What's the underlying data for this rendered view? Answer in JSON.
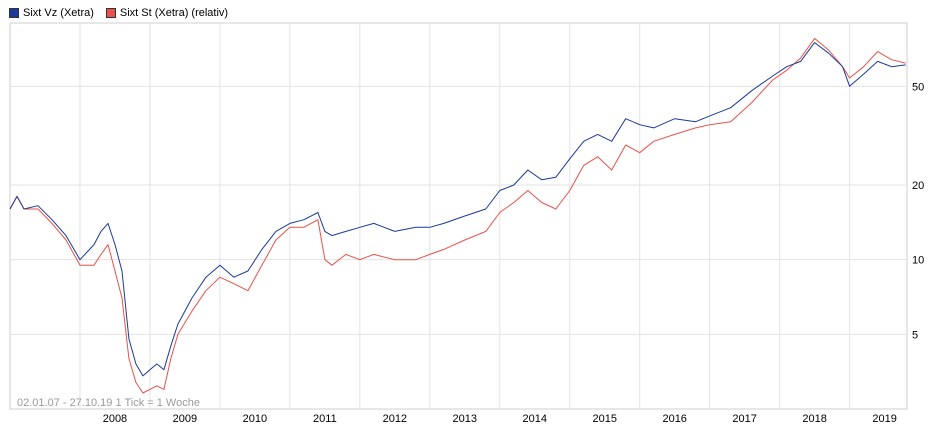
{
  "legend": {
    "series_1_label": "Sixt Vz (Xetra)",
    "series_2_label": "Sixt St (Xetra) (relativ)"
  },
  "footnote": "02.01.07 - 27.10.19   1 Tick = 1 Woche",
  "chart_data": {
    "type": "line",
    "title": "",
    "xlabel": "",
    "ylabel": "",
    "y_scale": "log",
    "x_range": [
      "2007-01-02",
      "2019-10-27"
    ],
    "y_range": [
      2.5,
      90
    ],
    "x_ticks": [
      "2008",
      "2009",
      "2010",
      "2011",
      "2012",
      "2013",
      "2014",
      "2015",
      "2016",
      "2017",
      "2018",
      "2019"
    ],
    "y_ticks": [
      5,
      10,
      20,
      50
    ],
    "y_axis_position": "right",
    "grid": true,
    "legend_position": "top-left",
    "series": [
      {
        "name": "Sixt Vz (Xetra)",
        "color": "#1a3a9c",
        "x": [
          2007.0,
          2007.1,
          2007.2,
          2007.4,
          2007.6,
          2007.8,
          2008.0,
          2008.2,
          2008.3,
          2008.4,
          2008.5,
          2008.6,
          2008.7,
          2008.8,
          2008.9,
          2009.0,
          2009.1,
          2009.2,
          2009.3,
          2009.4,
          2009.6,
          2009.8,
          2010.0,
          2010.2,
          2010.4,
          2010.6,
          2010.8,
          2011.0,
          2011.2,
          2011.4,
          2011.5,
          2011.6,
          2011.8,
          2012.0,
          2012.2,
          2012.5,
          2012.8,
          2013.0,
          2013.2,
          2013.5,
          2013.8,
          2014.0,
          2014.2,
          2014.4,
          2014.6,
          2014.8,
          2015.0,
          2015.2,
          2015.4,
          2015.6,
          2015.8,
          2016.0,
          2016.2,
          2016.5,
          2016.8,
          2017.0,
          2017.3,
          2017.6,
          2017.9,
          2018.1,
          2018.3,
          2018.5,
          2018.7,
          2018.9,
          2019.0,
          2019.2,
          2019.4,
          2019.6,
          2019.8
        ],
        "y": [
          16.0,
          18.0,
          16.0,
          16.5,
          14.5,
          12.5,
          10.0,
          11.5,
          13.0,
          14.0,
          11.5,
          9.0,
          4.8,
          3.8,
          3.4,
          3.6,
          3.8,
          3.6,
          4.5,
          5.5,
          7.0,
          8.5,
          9.5,
          8.5,
          9.0,
          11.0,
          13.0,
          14.0,
          14.5,
          15.5,
          13.0,
          12.5,
          13.0,
          13.5,
          14.0,
          13.0,
          13.5,
          13.5,
          14.0,
          15.0,
          16.0,
          19.0,
          20.0,
          23.0,
          21.0,
          21.5,
          25.5,
          30.0,
          32.0,
          30.0,
          37.0,
          35.0,
          34.0,
          37.0,
          36.0,
          38.0,
          41.0,
          48.0,
          55.0,
          60.0,
          63.0,
          75.0,
          68.0,
          60.0,
          50.0,
          56.0,
          63.0,
          60.0,
          61.0
        ]
      },
      {
        "name": "Sixt St (Xetra) (relativ)",
        "color": "#e8524a",
        "x": [
          2007.0,
          2007.1,
          2007.2,
          2007.4,
          2007.6,
          2007.8,
          2008.0,
          2008.2,
          2008.3,
          2008.4,
          2008.5,
          2008.6,
          2008.7,
          2008.8,
          2008.9,
          2009.0,
          2009.1,
          2009.2,
          2009.3,
          2009.4,
          2009.6,
          2009.8,
          2010.0,
          2010.2,
          2010.4,
          2010.6,
          2010.8,
          2011.0,
          2011.2,
          2011.4,
          2011.5,
          2011.6,
          2011.8,
          2012.0,
          2012.2,
          2012.5,
          2012.8,
          2013.0,
          2013.2,
          2013.5,
          2013.8,
          2014.0,
          2014.2,
          2014.4,
          2014.6,
          2014.8,
          2015.0,
          2015.2,
          2015.4,
          2015.6,
          2015.8,
          2016.0,
          2016.2,
          2016.5,
          2016.8,
          2017.0,
          2017.3,
          2017.6,
          2017.9,
          2018.1,
          2018.3,
          2018.5,
          2018.7,
          2018.9,
          2019.0,
          2019.2,
          2019.4,
          2019.6,
          2019.8
        ],
        "y": [
          16.0,
          18.0,
          16.0,
          16.0,
          14.0,
          12.0,
          9.5,
          9.5,
          10.5,
          11.5,
          9.0,
          7.0,
          4.0,
          3.2,
          2.9,
          3.0,
          3.1,
          3.0,
          4.0,
          5.0,
          6.2,
          7.5,
          8.5,
          8.0,
          7.5,
          9.5,
          12.0,
          13.5,
          13.5,
          14.5,
          10.0,
          9.5,
          10.5,
          10.0,
          10.5,
          10.0,
          10.0,
          10.5,
          11.0,
          12.0,
          13.0,
          15.5,
          17.0,
          19.0,
          17.0,
          16.0,
          19.0,
          24.0,
          26.0,
          23.0,
          29.0,
          27.0,
          30.0,
          32.0,
          34.0,
          35.0,
          36.0,
          43.0,
          53.0,
          58.0,
          65.0,
          78.0,
          70.0,
          60.0,
          54.0,
          60.0,
          69.0,
          64.0,
          62.0
        ]
      }
    ]
  }
}
